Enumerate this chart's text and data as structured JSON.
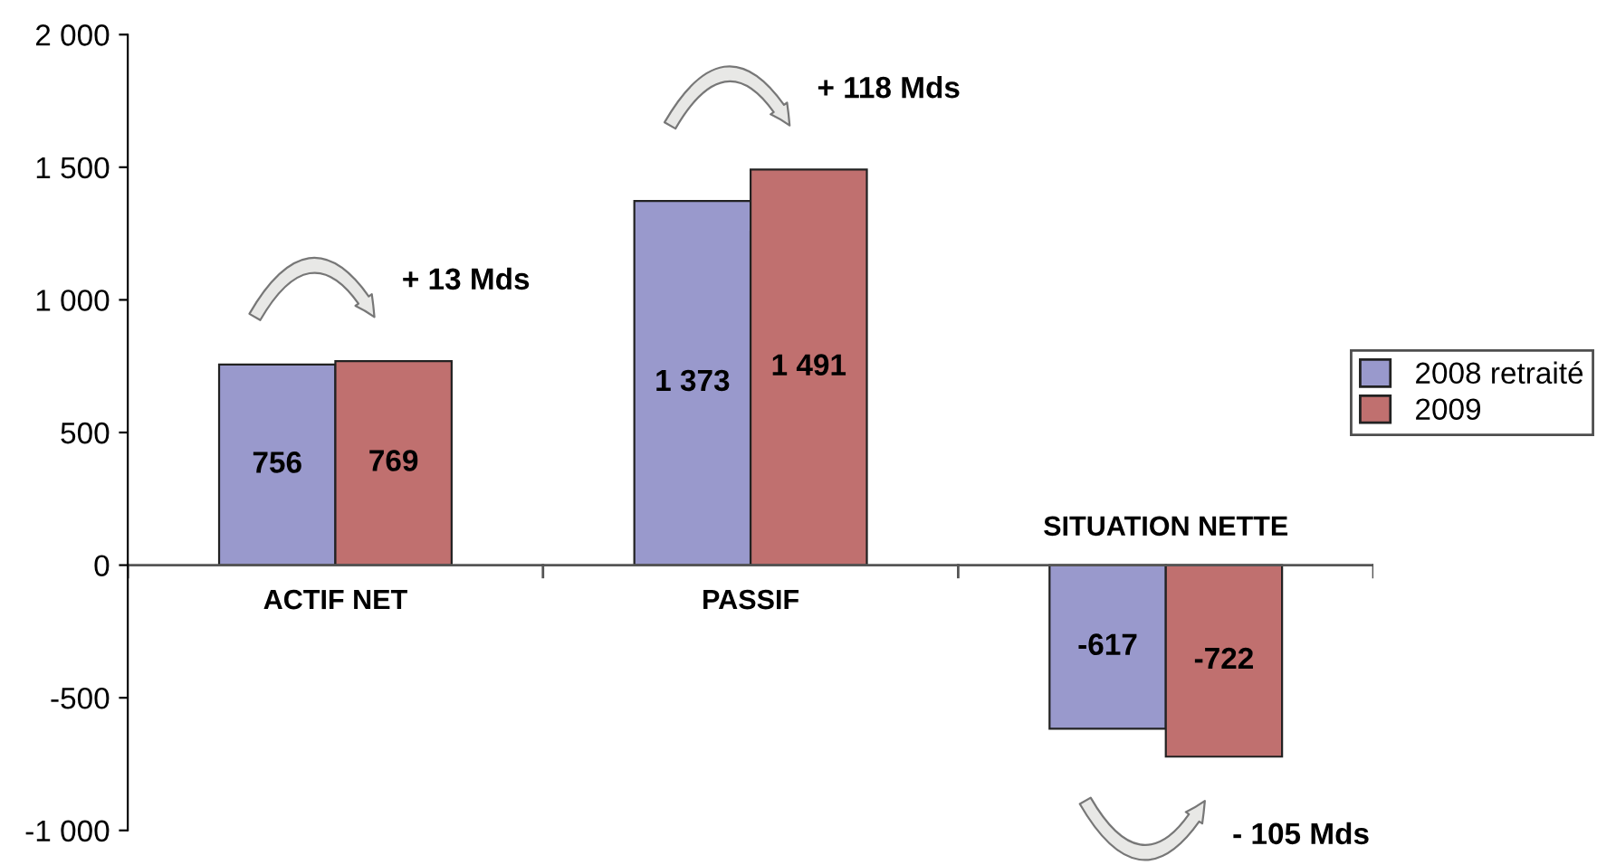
{
  "chart_data": {
    "type": "bar",
    "categories": [
      "ACTIF NET",
      "PASSIF",
      "SITUATION NETTE"
    ],
    "series": [
      {
        "name": "2008 retraité",
        "color": "#9999cc",
        "values": [
          756,
          1373,
          -617
        ],
        "value_labels": [
          "756",
          "1 373",
          "-617"
        ]
      },
      {
        "name": "2009",
        "color": "#c0706f",
        "values": [
          769,
          1491,
          -722
        ],
        "value_labels": [
          "769",
          "1 491",
          "-722"
        ]
      }
    ],
    "ylim": [
      -1000,
      2000
    ],
    "yticks": [
      {
        "value": -1000,
        "label": "-1 000"
      },
      -500,
      0,
      500,
      {
        "value": 1000,
        "label": "1 000"
      },
      {
        "value": 1500,
        "label": "1 500"
      },
      {
        "value": 2000,
        "label": "2 000"
      }
    ],
    "annotations": [
      "+ 13 Mds",
      "+ 118 Mds",
      "- 105 Mds"
    ],
    "legend": "right",
    "grid": false
  }
}
